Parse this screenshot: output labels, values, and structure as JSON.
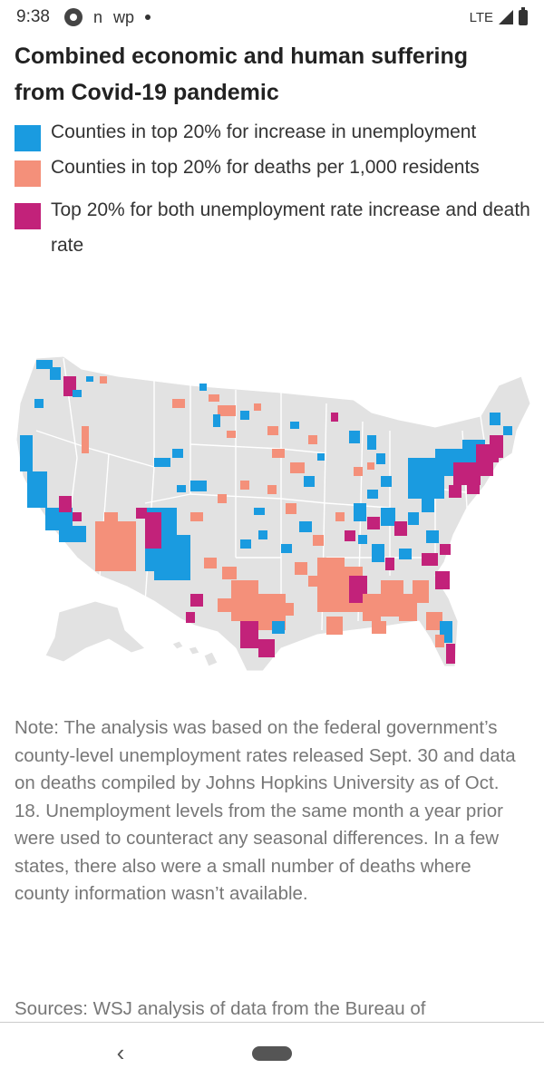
{
  "status": {
    "time": "9:38",
    "notif_text_1": "n",
    "notif_text_2": "wp",
    "network": "LTE"
  },
  "title": "Combined economic and human suffering from Covid-19 pandemic",
  "legend": [
    {
      "label": "Counties in top 20% for increase in unemployment",
      "color": "#1a9be0"
    },
    {
      "label": "Counties in top 20% for deaths per 1,000 residents",
      "color": "#f4907a"
    },
    {
      "label": "Top 20% for both unemployment rate increase and death rate",
      "color": "#c2227a"
    }
  ],
  "map": {
    "base_color": "#e2e2e2",
    "border_color": "#ffffff"
  },
  "note": "Note: The analysis was based on the federal government’s county-level unemployment rates released Sept. 30 and data on deaths compiled by Johns Hopkins University as of Oct. 18. Unemployment levels from the same month a year prior were used to counteract any seasonal differences. In a few states, there also were a small number of deaths where county information wasn’t available.",
  "sources": "Sources:  WSJ analysis of data from the Bureau of",
  "nav": {
    "back": "‹"
  }
}
